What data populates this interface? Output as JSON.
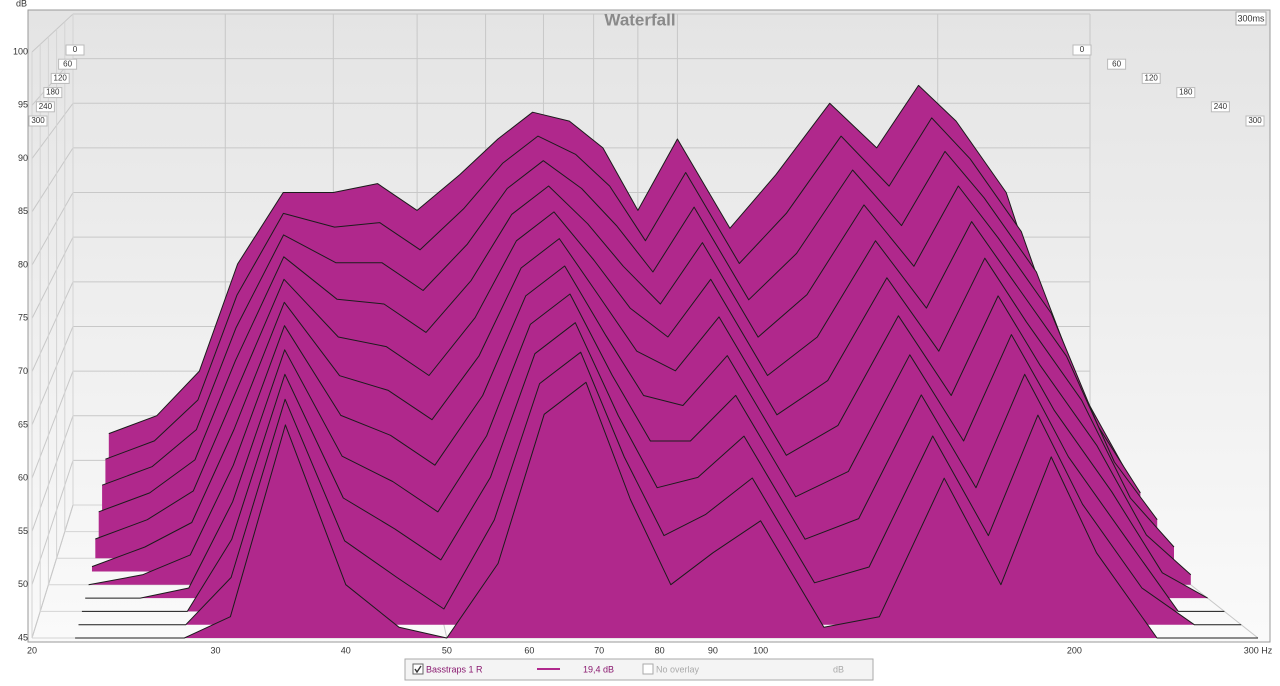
{
  "chart_data": {
    "type": "waterfall",
    "title": "Waterfall",
    "y_label": "dB",
    "corner_label": "300ms",
    "x_scale": "log",
    "x": [
      22,
      25,
      28,
      31,
      35,
      40,
      45,
      50,
      56,
      62,
      68,
      75,
      82,
      90,
      100,
      115,
      130,
      150,
      170,
      190,
      210,
      240,
      270,
      300
    ],
    "xlim": [
      20,
      300
    ],
    "xticks": [
      20,
      30,
      40,
      50,
      60,
      70,
      80,
      90,
      100,
      200,
      {
        "value": 300,
        "label": "300 Hz"
      }
    ],
    "ylim": [
      45,
      100
    ],
    "yticks": [
      45,
      50,
      55,
      60,
      65,
      70,
      75,
      80,
      85,
      90,
      95,
      100
    ],
    "zlim": [
      0,
      300
    ],
    "zticks": [
      0,
      60,
      120,
      180,
      240,
      300
    ],
    "color": "#b0288c",
    "grid": true,
    "slices": [
      {
        "t": 0,
        "values": [
          53,
          55,
          60,
          72,
          80,
          80,
          81,
          78,
          82,
          86,
          89,
          88,
          85,
          78,
          86,
          76,
          82,
          90,
          85,
          92,
          88,
          80,
          65,
          55
        ]
      },
      {
        "t": 30,
        "values": [
          51.5,
          53.5,
          58,
          69.5,
          78.5,
          77,
          77.5,
          74.5,
          79,
          84,
          87,
          85,
          81.5,
          75.5,
          83,
          73,
          78.5,
          87,
          81.5,
          89,
          84.5,
          76.5,
          62.5,
          53.5
        ]
      },
      {
        "t": 60,
        "values": [
          50,
          52,
          56,
          67,
          77,
          74,
          74,
          71,
          76,
          82,
          85,
          82,
          78,
          73,
          80,
          70,
          75,
          84,
          78,
          86,
          81,
          73,
          60,
          52
        ]
      },
      {
        "t": 90,
        "values": [
          48.5,
          50.5,
          54,
          64.5,
          75.5,
          71,
          70.5,
          67.5,
          73,
          80,
          83,
          79,
          74.5,
          70.5,
          77,
          67,
          71.5,
          81,
          74.5,
          83,
          77.5,
          69.5,
          57.5,
          50.5
        ]
      },
      {
        "t": 120,
        "values": [
          47,
          49,
          52,
          62,
          74,
          68,
          67,
          64,
          70,
          78,
          81,
          76,
          71,
          68,
          74,
          64,
          68,
          78,
          71,
          80,
          74,
          66,
          55,
          49
        ]
      },
      {
        "t": 150,
        "values": [
          45.5,
          47.5,
          50,
          59.5,
          72.5,
          65,
          63.5,
          60.5,
          67,
          76,
          79,
          73,
          67.5,
          65.5,
          71,
          61,
          64.5,
          75,
          67.5,
          77,
          70.5,
          62.5,
          52.5,
          47.5
        ]
      },
      {
        "t": 180,
        "values": [
          45,
          46,
          48,
          57,
          71,
          62,
          60,
          57,
          64,
          74,
          77,
          70,
          64,
          63,
          68,
          58,
          61,
          72,
          64,
          74,
          67,
          59,
          50,
          46
        ]
      },
      {
        "t": 210,
        "values": [
          45,
          45,
          46,
          54.5,
          69.5,
          59,
          56.5,
          53.5,
          61,
          72,
          75,
          67,
          60.5,
          60.5,
          65,
          55,
          57.5,
          69,
          60.5,
          71,
          63.5,
          55.5,
          47.5,
          45
        ]
      },
      {
        "t": 240,
        "values": [
          45,
          45,
          45,
          52,
          68,
          56,
          53,
          50,
          58,
          70,
          73,
          64,
          57,
          58,
          62,
          52,
          54,
          66,
          57,
          68,
          60,
          52,
          45,
          45
        ]
      },
      {
        "t": 270,
        "values": [
          45,
          45,
          45,
          49.5,
          66.5,
          53,
          49.5,
          46.5,
          55,
          68,
          71,
          61,
          53.5,
          55.5,
          59,
          49,
          50.5,
          63,
          53.5,
          65,
          56.5,
          48.5,
          45,
          45
        ]
      },
      {
        "t": 300,
        "values": [
          45,
          45,
          45,
          47,
          65,
          50,
          46,
          45,
          52,
          66,
          69,
          58,
          50,
          53,
          56,
          46,
          47,
          60,
          50,
          62,
          53,
          45,
          45,
          45
        ]
      }
    ],
    "legend": {
      "series_name": "Basstraps 1 R",
      "value": "19,4 dB",
      "overlay": "No overlay",
      "unit": "dB"
    }
  }
}
